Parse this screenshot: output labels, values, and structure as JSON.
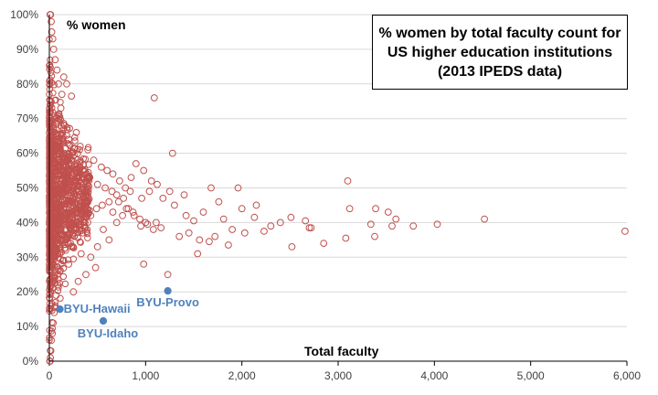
{
  "chart_data": {
    "type": "scatter",
    "title": "% women by total faculty count for US higher education institutions (2013 IPEDS data)",
    "xlabel": "Total faculty",
    "ylabel": "% women",
    "xlim": [
      0,
      6000
    ],
    "ylim": [
      0,
      100
    ],
    "x_ticks": [
      "0",
      "1,000",
      "2,000",
      "3,000",
      "4,000",
      "5,000",
      "6,000"
    ],
    "y_ticks": [
      "0%",
      "10%",
      "20%",
      "30%",
      "40%",
      "50%",
      "60%",
      "70%",
      "80%",
      "90%",
      "100%"
    ],
    "grid": "horizontal",
    "series": [
      {
        "name": "",
        "marker": "open-circle",
        "color": "#c0504d",
        "points": [
          [
            1090,
            76
          ],
          [
            3100,
            52
          ],
          [
            1280,
            60
          ],
          [
            3120,
            44
          ],
          [
            3390,
            44
          ],
          [
            3520,
            43
          ],
          [
            3600,
            41
          ],
          [
            3560,
            39
          ],
          [
            3780,
            39
          ],
          [
            4030,
            39.5
          ],
          [
            4520,
            41
          ],
          [
            5980,
            37.5
          ],
          [
            2510,
            41.5
          ],
          [
            2660,
            40.5
          ],
          [
            2700,
            38.5
          ],
          [
            2520,
            33
          ],
          [
            2850,
            34
          ],
          [
            3080,
            35.5
          ],
          [
            3380,
            36
          ],
          [
            3340,
            39.5
          ],
          [
            2720,
            38.5
          ],
          [
            2300,
            39
          ],
          [
            2130,
            41.5
          ],
          [
            1960,
            50
          ],
          [
            1680,
            50
          ],
          [
            1760,
            46
          ],
          [
            1600,
            43
          ],
          [
            1810,
            41
          ],
          [
            1500,
            40.5
          ],
          [
            1420,
            42
          ],
          [
            1300,
            45
          ],
          [
            1180,
            47
          ],
          [
            1060,
            52
          ],
          [
            980,
            55
          ],
          [
            900,
            57
          ],
          [
            850,
            53
          ],
          [
            820,
            44
          ],
          [
            700,
            40
          ],
          [
            620,
            35
          ],
          [
            560,
            38
          ],
          [
            500,
            33
          ],
          [
            480,
            27
          ],
          [
            430,
            30
          ],
          [
            380,
            25
          ],
          [
            330,
            31
          ],
          [
            300,
            23
          ],
          [
            250,
            20
          ],
          [
            200,
            28
          ],
          [
            1230,
            25
          ],
          [
            980,
            28
          ],
          [
            2230,
            37.5
          ],
          [
            2030,
            37
          ],
          [
            1900,
            38
          ],
          [
            1720,
            36
          ],
          [
            1560,
            35
          ],
          [
            1450,
            37
          ],
          [
            1350,
            36
          ],
          [
            1160,
            38.5
          ],
          [
            1110,
            40
          ],
          [
            1020,
            39.5
          ],
          [
            950,
            39
          ],
          [
            880,
            42
          ],
          [
            760,
            42
          ],
          [
            660,
            43
          ],
          [
            1860,
            33.5
          ],
          [
            1660,
            34.5
          ],
          [
            1540,
            31
          ],
          [
            2000,
            44
          ],
          [
            2150,
            45
          ],
          [
            2400,
            40
          ],
          [
            1400,
            48
          ],
          [
            1250,
            49
          ],
          [
            1120,
            51
          ],
          [
            1040,
            49
          ],
          [
            960,
            47
          ],
          [
            150,
            82
          ],
          [
            180,
            80
          ],
          [
            230,
            76.5
          ],
          [
            130,
            77
          ],
          [
            100,
            70
          ],
          [
            140,
            65
          ],
          [
            280,
            66
          ],
          [
            320,
            62
          ],
          [
            400,
            61
          ],
          [
            460,
            58
          ],
          [
            540,
            56
          ],
          [
            600,
            55
          ],
          [
            660,
            54
          ],
          [
            730,
            52
          ],
          [
            790,
            50
          ],
          [
            840,
            49
          ],
          [
            770,
            47
          ],
          [
            700,
            48
          ],
          [
            620,
            46
          ],
          [
            550,
            45
          ],
          [
            490,
            44
          ],
          [
            430,
            42
          ],
          [
            370,
            40
          ],
          [
            310,
            38
          ],
          [
            260,
            36
          ],
          [
            220,
            34
          ],
          [
            170,
            32
          ],
          [
            140,
            29
          ],
          [
            110,
            26
          ],
          [
            90,
            22
          ],
          [
            70,
            19
          ],
          [
            60,
            16
          ],
          [
            50,
            14
          ],
          [
            40,
            11
          ],
          [
            30,
            8
          ],
          [
            20,
            6
          ],
          [
            15,
            3
          ],
          [
            10,
            1
          ],
          [
            8,
            0
          ],
          [
            5,
            0
          ],
          [
            12,
            100
          ],
          [
            8,
            100
          ],
          [
            20,
            98
          ],
          [
            25,
            95
          ],
          [
            35,
            93
          ],
          [
            45,
            90
          ],
          [
            60,
            87
          ],
          [
            80,
            84
          ],
          [
            95,
            80
          ],
          [
            120,
            73
          ],
          [
            160,
            68
          ],
          [
            200,
            64
          ],
          [
            240,
            60
          ],
          [
            290,
            57
          ],
          [
            350,
            55
          ],
          [
            420,
            53
          ],
          [
            500,
            51
          ],
          [
            580,
            50
          ],
          [
            650,
            49
          ],
          [
            720,
            46
          ],
          [
            800,
            44
          ],
          [
            870,
            43
          ],
          [
            940,
            41
          ],
          [
            1000,
            40
          ],
          [
            1080,
            38
          ]
        ]
      }
    ],
    "annotations": [
      {
        "label": "BYU-Provo",
        "x": 1230,
        "y": 20.3
      },
      {
        "label": "BYU-Idaho",
        "x": 560,
        "y": 11.6
      },
      {
        "label": "BYU-Hawaii",
        "x": 110,
        "y": 15
      }
    ]
  }
}
